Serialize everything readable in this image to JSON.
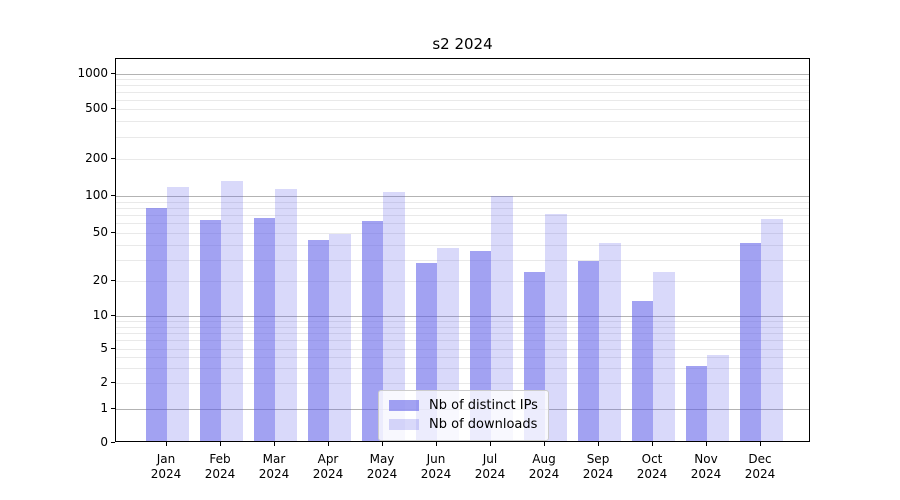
{
  "chart_data": {
    "type": "bar",
    "title": "s2 2024",
    "categories": [
      "Jan 2024",
      "Feb 2024",
      "Mar 2024",
      "Apr 2024",
      "May 2024",
      "Jun 2024",
      "Jul 2024",
      "Aug 2024",
      "Sep 2024",
      "Oct 2024",
      "Nov 2024",
      "Dec 2024"
    ],
    "series": [
      {
        "name": "Nb of distinct IPs",
        "color": "rgba(92,92,232,0.57)",
        "values": [
          77,
          61,
          64,
          42,
          60,
          27,
          34,
          23,
          28,
          13,
          3,
          40
        ]
      },
      {
        "name": "Nb of downloads",
        "color": "rgba(92,92,232,0.23)",
        "values": [
          115,
          127,
          110,
          47,
          103,
          36,
          96,
          69,
          40,
          23,
          4,
          63
        ]
      }
    ],
    "yticks": [
      0,
      1,
      2,
      5,
      10,
      20,
      50,
      100,
      200,
      500,
      1000
    ],
    "yscale": "symlog",
    "ylim": [
      0,
      1400
    ],
    "xlabel": "",
    "ylabel": "",
    "grid": true,
    "legend_position": "lower-center"
  },
  "colors": {
    "major_grid": "#b3b3b3",
    "minor_grid": "#e9e9e9",
    "axis": "#000000"
  }
}
